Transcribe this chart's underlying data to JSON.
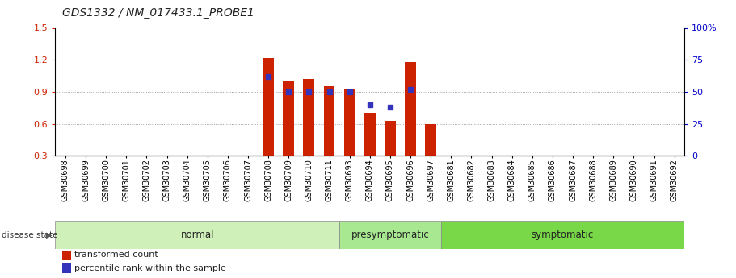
{
  "title": "GDS1332 / NM_017433.1_PROBE1",
  "samples": [
    "GSM30698",
    "GSM30699",
    "GSM30700",
    "GSM30701",
    "GSM30702",
    "GSM30703",
    "GSM30704",
    "GSM30705",
    "GSM30706",
    "GSM30707",
    "GSM30708",
    "GSM30709",
    "GSM30710",
    "GSM30711",
    "GSM30693",
    "GSM30694",
    "GSM30695",
    "GSM30696",
    "GSM30697",
    "GSM30681",
    "GSM30682",
    "GSM30683",
    "GSM30684",
    "GSM30685",
    "GSM30686",
    "GSM30687",
    "GSM30688",
    "GSM30689",
    "GSM30690",
    "GSM30691",
    "GSM30692"
  ],
  "groups": [
    {
      "label": "normal",
      "start": 0,
      "end": 13,
      "color": "#cff0b8"
    },
    {
      "label": "presymptomatic",
      "start": 14,
      "end": 18,
      "color": "#a8e890"
    },
    {
      "label": "symptomatic",
      "start": 19,
      "end": 30,
      "color": "#78d848"
    }
  ],
  "bar_values": [
    null,
    null,
    null,
    null,
    null,
    null,
    null,
    null,
    null,
    null,
    1.22,
    1.0,
    1.02,
    0.95,
    0.93,
    0.7,
    0.63,
    1.18,
    0.6,
    null,
    null,
    null,
    null,
    null,
    null,
    null,
    null,
    null,
    null,
    null,
    null
  ],
  "dot_pct": [
    null,
    null,
    null,
    null,
    null,
    null,
    null,
    null,
    null,
    null,
    62,
    50,
    50,
    50,
    50,
    40,
    38,
    52,
    null,
    null,
    null,
    null,
    null,
    null,
    null,
    null,
    null,
    null,
    null,
    null,
    null
  ],
  "ylim_left": [
    0.3,
    1.5
  ],
  "ylim_right": [
    0,
    100
  ],
  "yticks_left": [
    0.3,
    0.6,
    0.9,
    1.2,
    1.5
  ],
  "yticks_right": [
    0,
    25,
    50,
    75,
    100
  ],
  "bar_color": "#cc2200",
  "dot_color": "#3333bb",
  "disease_state_label": "disease state",
  "legend_bar_label": "transformed count",
  "legend_dot_label": "percentile rank within the sample",
  "title_fontsize": 10,
  "tick_fontsize": 7,
  "group_label_fontsize": 8.5,
  "background_color": "#ffffff",
  "plot_bg_color": "#ffffff"
}
